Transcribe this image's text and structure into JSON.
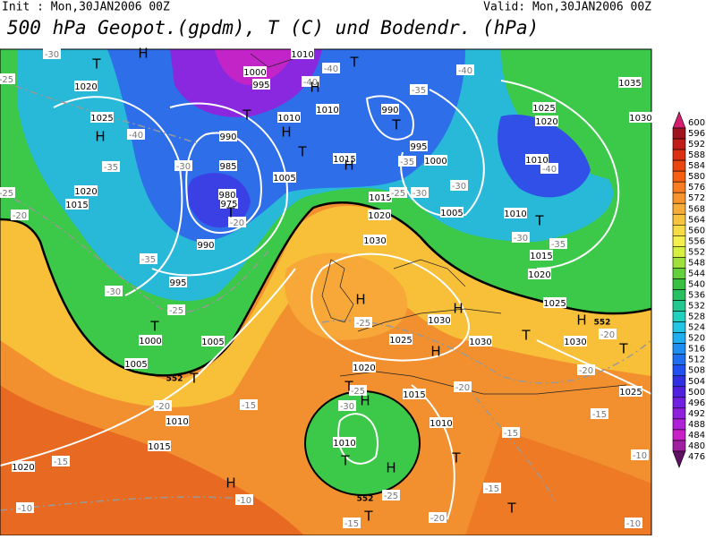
{
  "header": {
    "init": "Init : Mon,30JAN2006 00Z",
    "valid": "Valid: Mon,30JAN2006 00Z",
    "title": "500 hPa Geopot.(gpdm), T (C) und Bodendr. (hPa)"
  },
  "map": {
    "centers": [
      "H",
      "T",
      "H",
      "T",
      "H",
      "T",
      "H",
      "T",
      "H",
      "T",
      "T",
      "H",
      "H",
      "H",
      "T",
      "T",
      "T",
      "T",
      "H",
      "T",
      "H",
      "T",
      "H",
      "T",
      "T",
      "T",
      "T",
      "H"
    ],
    "isobars": [
      1020,
      1025,
      1020,
      1015,
      1010,
      1000,
      995,
      1010,
      1010,
      990,
      985,
      980,
      975,
      1005,
      1015,
      990,
      995,
      1000,
      1010,
      1015,
      1020,
      1030,
      1005,
      1010,
      1015,
      1020,
      1025,
      990,
      995,
      1000,
      1005,
      1005,
      1010,
      1015,
      1020,
      1030,
      1025,
      1030,
      1030,
      1025,
      1020,
      1015,
      1010,
      1010,
      1035,
      1025,
      1020,
      1030
    ],
    "isotherms": [
      -30,
      -25,
      -40,
      -35,
      -30,
      -25,
      -20,
      -40,
      -40,
      -35,
      -40,
      -40,
      -35,
      -25,
      -30,
      -30,
      -30,
      -35,
      -35,
      -30,
      -25,
      -20,
      -25,
      -20,
      -15,
      -15,
      -10,
      -10,
      -10,
      -15,
      -15,
      -20,
      -20,
      -25,
      -30,
      -25,
      -20,
      -15,
      -15,
      -10,
      -20
    ],
    "contour_552": [
      552,
      552,
      552
    ]
  },
  "colorbar": {
    "ticks": [
      600,
      596,
      592,
      588,
      584,
      580,
      576,
      572,
      568,
      564,
      560,
      556,
      552,
      548,
      544,
      540,
      536,
      532,
      528,
      524,
      520,
      516,
      512,
      508,
      504,
      500,
      496,
      492,
      488,
      484,
      480,
      476
    ],
    "colors": [
      "#d41e70",
      "#a01420",
      "#c01c18",
      "#dc3012",
      "#ec4610",
      "#f65e12",
      "#f87c20",
      "#f8942e",
      "#f8ac3a",
      "#f8c440",
      "#f8dc46",
      "#f4ee4e",
      "#d8ee40",
      "#a0e03e",
      "#64d03e",
      "#38c040",
      "#28c060",
      "#22c890",
      "#22d0c0",
      "#22c6e4",
      "#20aef0",
      "#208ef0",
      "#206ef0",
      "#2050f0",
      "#3030e2",
      "#5020e0",
      "#7020e0",
      "#9020de",
      "#b020d6",
      "#c820c6",
      "#a01ea0",
      "#601060"
    ]
  }
}
